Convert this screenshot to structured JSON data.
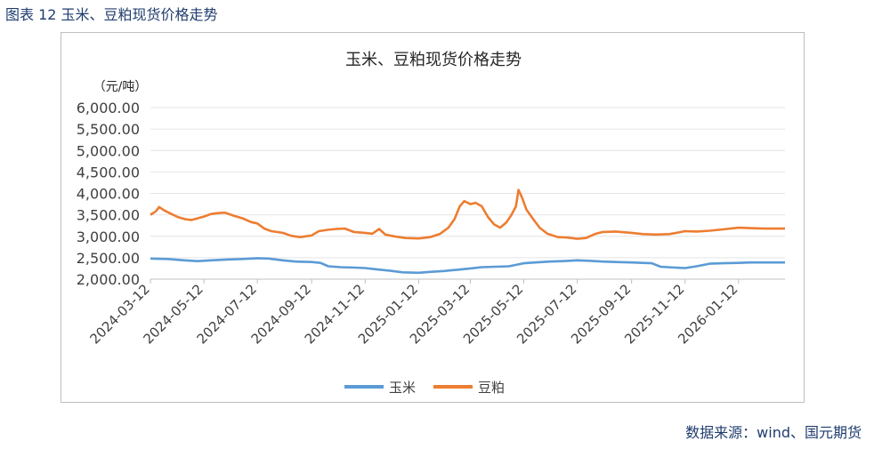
{
  "figure": {
    "caption": "图表 12 玉米、豆粕现货价格走势",
    "source": "数据来源：wind、国元期货"
  },
  "chart_data": {
    "type": "line",
    "title": "玉米、豆粕现货价格走势",
    "ylabel": "（元/吨）",
    "xlabel": "",
    "ylim": [
      2000,
      6000
    ],
    "ytick_values": [
      2000,
      2500,
      3000,
      3500,
      4000,
      4500,
      5000,
      5500,
      6000
    ],
    "ytick_labels": [
      "2,000.00",
      "2,500.00",
      "3,000.00",
      "3,500.00",
      "4,000.00",
      "4,500.00",
      "5,000.00",
      "5,500.00",
      "6,000.00"
    ],
    "xtick_labels": [
      "2024-03-12",
      "2024-05-12",
      "2024-07-12",
      "2024-09-12",
      "2024-11-12",
      "2025-01-12",
      "2025-03-12",
      "2025-05-12",
      "2025-07-12",
      "2025-09-12",
      "2025-11-12",
      "2026-01-12"
    ],
    "xlim": [
      "2024-03-12",
      "2026-03-06"
    ],
    "grid": "horizontal",
    "legend_position": "bottom",
    "series": [
      {
        "name": "玉米",
        "color": "#5b9bd5",
        "points": [
          [
            "2024-03-12",
            2480
          ],
          [
            "2024-04-01",
            2470
          ],
          [
            "2024-04-20",
            2440
          ],
          [
            "2024-05-05",
            2420
          ],
          [
            "2024-05-20",
            2440
          ],
          [
            "2024-06-10",
            2460
          ],
          [
            "2024-06-25",
            2470
          ],
          [
            "2024-07-12",
            2490
          ],
          [
            "2024-07-25",
            2480
          ],
          [
            "2024-08-10",
            2440
          ],
          [
            "2024-08-25",
            2410
          ],
          [
            "2024-09-12",
            2400
          ],
          [
            "2024-09-22",
            2380
          ],
          [
            "2024-10-01",
            2300
          ],
          [
            "2024-10-15",
            2280
          ],
          [
            "2024-11-01",
            2270
          ],
          [
            "2024-11-12",
            2260
          ],
          [
            "2024-11-25",
            2230
          ],
          [
            "2024-12-10",
            2200
          ],
          [
            "2024-12-25",
            2160
          ],
          [
            "2025-01-12",
            2150
          ],
          [
            "2025-01-25",
            2170
          ],
          [
            "2025-02-10",
            2190
          ],
          [
            "2025-02-25",
            2220
          ],
          [
            "2025-03-12",
            2250
          ],
          [
            "2025-03-25",
            2280
          ],
          [
            "2025-04-10",
            2290
          ],
          [
            "2025-04-25",
            2300
          ],
          [
            "2025-05-12",
            2370
          ],
          [
            "2025-05-25",
            2390
          ],
          [
            "2025-06-10",
            2410
          ],
          [
            "2025-06-25",
            2420
          ],
          [
            "2025-07-12",
            2440
          ],
          [
            "2025-07-25",
            2430
          ],
          [
            "2025-08-10",
            2410
          ],
          [
            "2025-08-25",
            2400
          ],
          [
            "2025-09-12",
            2390
          ],
          [
            "2025-09-25",
            2380
          ],
          [
            "2025-10-05",
            2370
          ],
          [
            "2025-10-15",
            2290
          ],
          [
            "2025-11-01",
            2270
          ],
          [
            "2025-11-12",
            2260
          ],
          [
            "2025-11-25",
            2300
          ],
          [
            "2025-12-10",
            2360
          ],
          [
            "2025-12-25",
            2370
          ],
          [
            "2026-01-12",
            2380
          ],
          [
            "2026-01-25",
            2390
          ],
          [
            "2026-02-10",
            2390
          ],
          [
            "2026-03-06",
            2390
          ]
        ]
      },
      {
        "name": "豆粕",
        "color": "#ed7d31",
        "points": [
          [
            "2024-03-12",
            3500
          ],
          [
            "2024-03-18",
            3580
          ],
          [
            "2024-03-22",
            3680
          ],
          [
            "2024-03-28",
            3600
          ],
          [
            "2024-04-05",
            3520
          ],
          [
            "2024-04-12",
            3450
          ],
          [
            "2024-04-20",
            3400
          ],
          [
            "2024-04-28",
            3380
          ],
          [
            "2024-05-05",
            3420
          ],
          [
            "2024-05-12",
            3460
          ],
          [
            "2024-05-20",
            3520
          ],
          [
            "2024-05-28",
            3540
          ],
          [
            "2024-06-05",
            3550
          ],
          [
            "2024-06-15",
            3480
          ],
          [
            "2024-06-25",
            3420
          ],
          [
            "2024-07-05",
            3330
          ],
          [
            "2024-07-12",
            3300
          ],
          [
            "2024-07-20",
            3180
          ],
          [
            "2024-07-28",
            3120
          ],
          [
            "2024-08-10",
            3080
          ],
          [
            "2024-08-20",
            3010
          ],
          [
            "2024-08-30",
            2980
          ],
          [
            "2024-09-12",
            3020
          ],
          [
            "2024-09-20",
            3120
          ],
          [
            "2024-09-30",
            3150
          ],
          [
            "2024-10-10",
            3170
          ],
          [
            "2024-10-20",
            3180
          ],
          [
            "2024-10-30",
            3100
          ],
          [
            "2024-11-12",
            3080
          ],
          [
            "2024-11-20",
            3060
          ],
          [
            "2024-11-28",
            3170
          ],
          [
            "2024-12-05",
            3040
          ],
          [
            "2024-12-15",
            3000
          ],
          [
            "2024-12-28",
            2960
          ],
          [
            "2025-01-12",
            2950
          ],
          [
            "2025-01-25",
            2980
          ],
          [
            "2025-02-05",
            3050
          ],
          [
            "2025-02-15",
            3200
          ],
          [
            "2025-02-22",
            3400
          ],
          [
            "2025-02-28",
            3700
          ],
          [
            "2025-03-05",
            3820
          ],
          [
            "2025-03-12",
            3750
          ],
          [
            "2025-03-18",
            3780
          ],
          [
            "2025-03-25",
            3700
          ],
          [
            "2025-04-01",
            3450
          ],
          [
            "2025-04-08",
            3280
          ],
          [
            "2025-04-15",
            3200
          ],
          [
            "2025-04-22",
            3320
          ],
          [
            "2025-04-28",
            3500
          ],
          [
            "2025-05-03",
            3700
          ],
          [
            "2025-05-06",
            4080
          ],
          [
            "2025-05-10",
            3900
          ],
          [
            "2025-05-15",
            3620
          ],
          [
            "2025-05-22",
            3420
          ],
          [
            "2025-05-30",
            3200
          ],
          [
            "2025-06-08",
            3060
          ],
          [
            "2025-06-20",
            2980
          ],
          [
            "2025-07-01",
            2970
          ],
          [
            "2025-07-12",
            2940
          ],
          [
            "2025-07-22",
            2960
          ],
          [
            "2025-08-01",
            3050
          ],
          [
            "2025-08-10",
            3100
          ],
          [
            "2025-08-25",
            3110
          ],
          [
            "2025-09-12",
            3080
          ],
          [
            "2025-09-25",
            3050
          ],
          [
            "2025-10-10",
            3040
          ],
          [
            "2025-10-25",
            3050
          ],
          [
            "2025-11-05",
            3090
          ],
          [
            "2025-11-12",
            3120
          ],
          [
            "2025-11-25",
            3110
          ],
          [
            "2025-12-10",
            3130
          ],
          [
            "2025-12-25",
            3160
          ],
          [
            "2026-01-12",
            3200
          ],
          [
            "2026-01-25",
            3190
          ],
          [
            "2026-02-10",
            3180
          ],
          [
            "2026-03-06",
            3180
          ]
        ]
      }
    ]
  }
}
